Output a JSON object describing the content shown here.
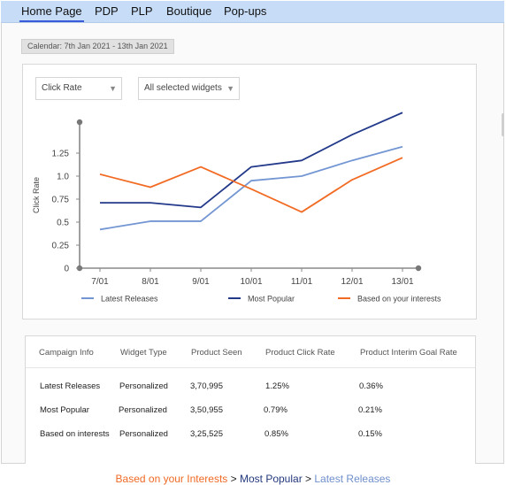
{
  "tabs": [
    {
      "label": "Home Page",
      "active": true
    },
    {
      "label": "PDP",
      "active": false
    },
    {
      "label": "PLP",
      "active": false
    },
    {
      "label": "Boutique",
      "active": false
    },
    {
      "label": "Pop-ups",
      "active": false
    }
  ],
  "calendar": {
    "label": "Calendar: 7th Jan 2021 - 13th Jan 2021"
  },
  "filters": {
    "metric": {
      "selected": "Click Rate",
      "icon": "caret-down-icon"
    },
    "widgets": {
      "selected": "All selected widgets",
      "icon": "caret-down-icon"
    }
  },
  "chart_data": {
    "type": "line",
    "ylabel": "Click Rate",
    "x": [
      "7/01",
      "8/01",
      "9/01",
      "10/01",
      "11/01",
      "12/01",
      "13/01"
    ],
    "yticks": [
      "0",
      "0.25",
      "0.5",
      "0.75",
      "1.0",
      "1.25"
    ],
    "ylim": [
      0,
      1.6
    ],
    "grid": false,
    "legend_position": "bottom",
    "series": [
      {
        "name": "Latest Releases",
        "color": "#7396d3",
        "values": [
          0.42,
          0.51,
          0.51,
          0.95,
          1.0,
          1.17,
          1.32
        ]
      },
      {
        "name": "Most Popular",
        "color": "#23398a",
        "values": [
          0.71,
          0.71,
          0.66,
          1.1,
          1.17,
          1.45,
          1.69
        ]
      },
      {
        "name": "Based on  your interests",
        "color": "#f26b24",
        "values": [
          1.02,
          0.88,
          1.1,
          0.86,
          0.61,
          0.96,
          1.2
        ]
      }
    ]
  },
  "table": {
    "headers": [
      "Campaign Info",
      "Widget Type",
      "Product Seen",
      "Product Click Rate",
      "Product Interim Goal Rate"
    ],
    "rows": [
      [
        "Latest Releases",
        "Personalized",
        "3,70,995",
        "1.25%",
        "0.36%"
      ],
      [
        "Most Popular",
        "Personalized",
        "3,50,955",
        "0.79%",
        "0.21%"
      ],
      [
        "Based on interests",
        "Personalized",
        "3,25,525",
        "0.85%",
        "0.15%"
      ]
    ]
  },
  "breadcrumb": {
    "item1": "Based on your Interests",
    "sep": " > ",
    "item2": "Most Popular",
    "item3": "Latest Releases",
    "colors": {
      "item1": "#ef6a24",
      "item2": "#24397d",
      "item3": "#6f8fcb"
    }
  }
}
